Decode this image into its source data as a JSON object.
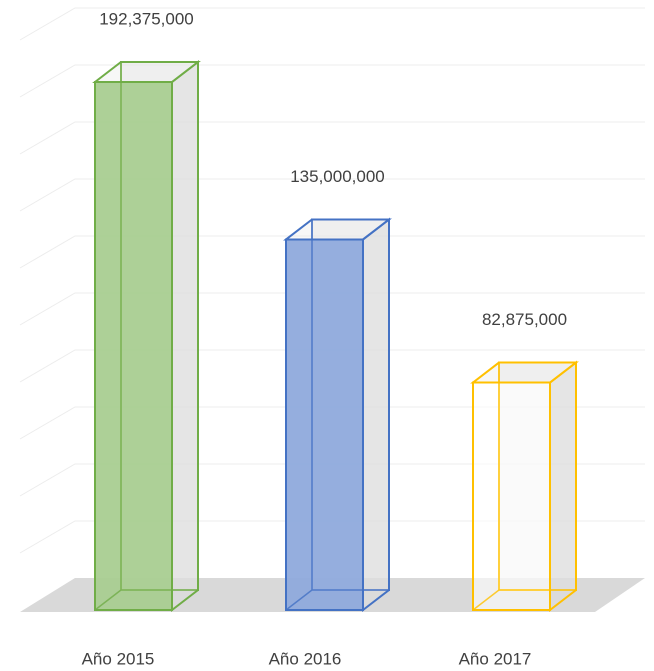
{
  "chart_data": {
    "type": "bar3d",
    "categories": [
      "Año 2015",
      "Año 2016",
      "Año 2017"
    ],
    "values": [
      192375000,
      135000000,
      82875000
    ],
    "value_labels": [
      "192,375,000",
      "135,000,000",
      "82,875,000"
    ],
    "colors": [
      "#70ad47",
      "#4472c4",
      "#ffc000"
    ]
  }
}
